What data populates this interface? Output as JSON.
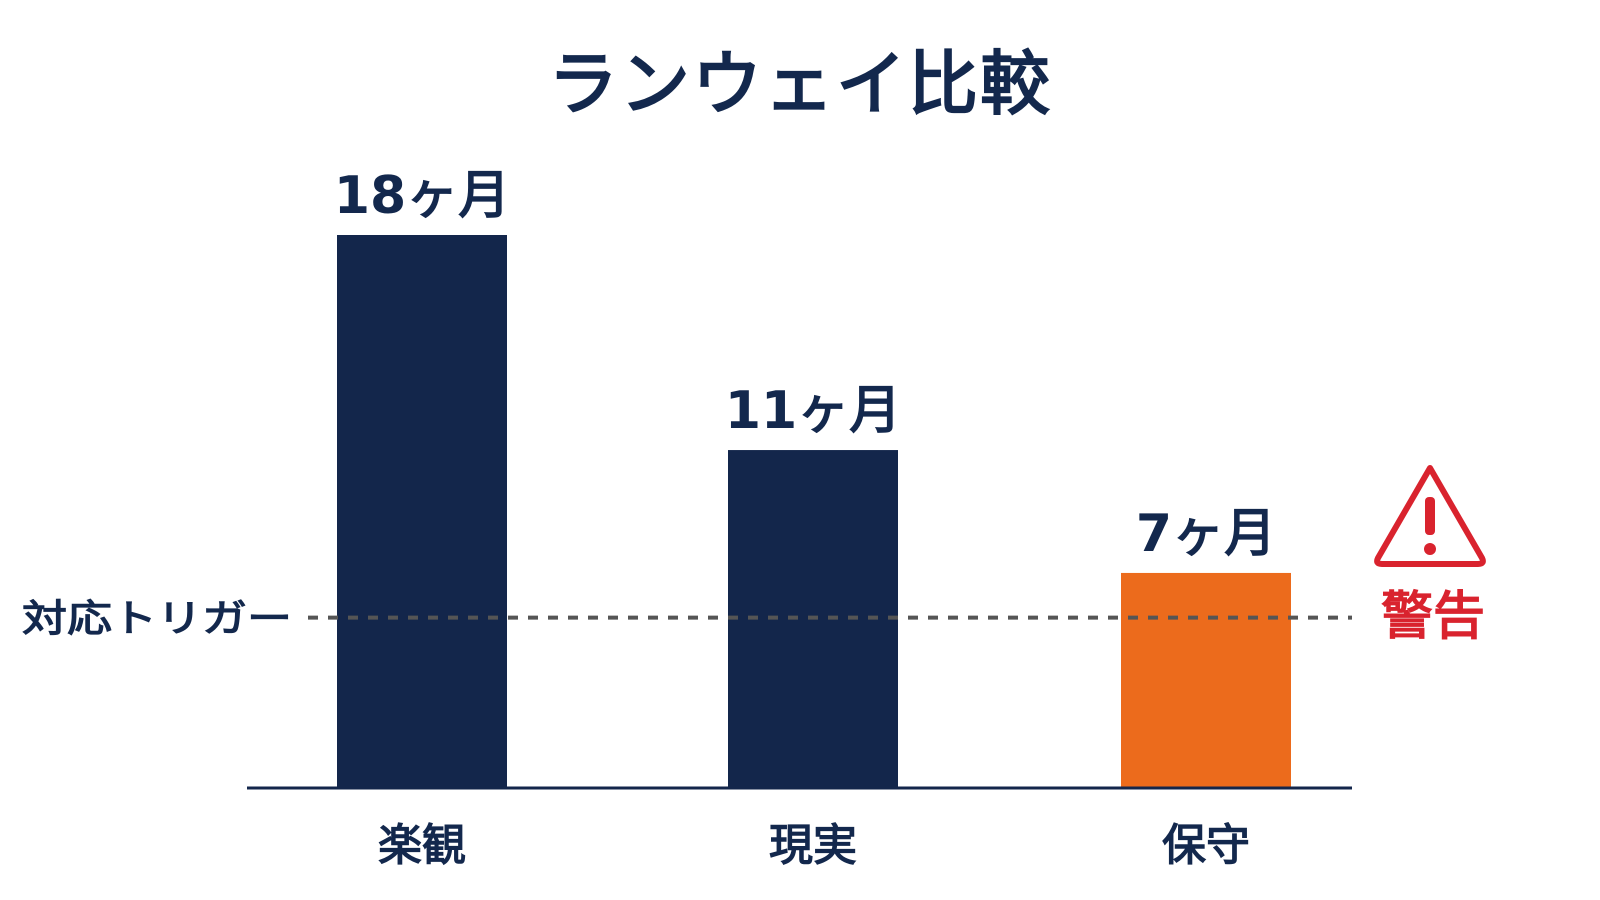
{
  "chart_data": {
    "type": "bar",
    "title": "ランウェイ比較",
    "categories": [
      "楽観",
      "現実",
      "保守"
    ],
    "values": [
      18,
      11,
      7
    ],
    "value_labels": [
      "18ヶ月",
      "11ヶ月",
      "7ヶ月"
    ],
    "unit": "ヶ月",
    "ylim": [
      0,
      20
    ],
    "grid": false,
    "reference_line": {
      "label": "対応トリガー",
      "value": 6
    },
    "warning": {
      "label": "警告",
      "icon": "warning-triangle-icon",
      "category": "保守"
    },
    "colors": {
      "bar": "#13264b",
      "highlight": "#ec6b1c",
      "text": "#13284d",
      "warning": "#d9232e",
      "reference_line": "#555555",
      "axis": "#13264b"
    },
    "highlight_index": 2
  }
}
